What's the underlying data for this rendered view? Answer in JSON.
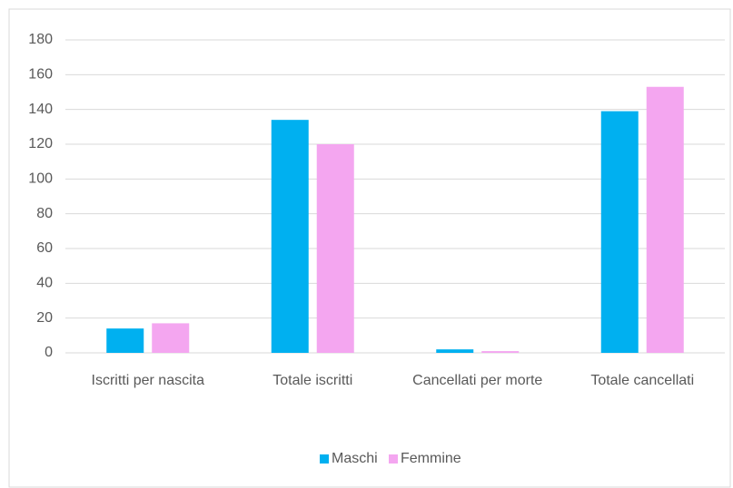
{
  "chart_data": {
    "type": "bar",
    "categories": [
      "Iscritti per nascita",
      "Totale iscritti",
      "Cancellati per morte",
      "Totale cancellati"
    ],
    "series": [
      {
        "name": "Maschi",
        "color": "#00b0f0",
        "values": [
          14,
          134,
          2,
          139
        ]
      },
      {
        "name": "Femmine",
        "color": "#f4a6f0",
        "values": [
          17,
          120,
          1,
          153
        ]
      }
    ],
    "ylim": [
      0,
      180
    ],
    "yticks": [
      0,
      20,
      40,
      60,
      80,
      100,
      120,
      140,
      160,
      180
    ],
    "grid": true,
    "legend": "bottom"
  }
}
